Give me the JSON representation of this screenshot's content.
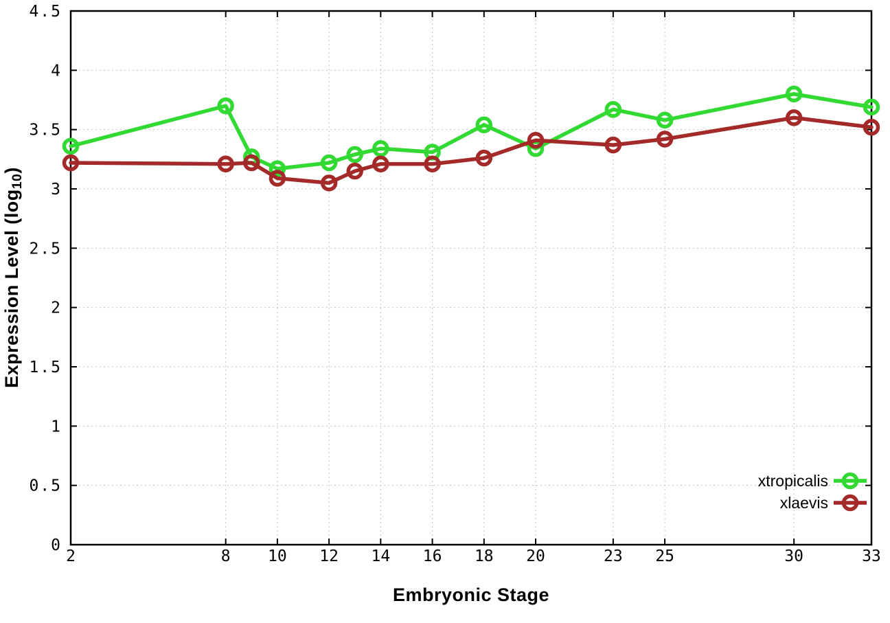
{
  "chart_data": {
    "type": "line",
    "title": "",
    "xlabel": "Embryonic Stage",
    "ylabel": {
      "pre": "Expression Level (log",
      "sub": "10",
      "post": ")"
    },
    "xlim": [
      2,
      33
    ],
    "ylim": [
      0,
      4.5
    ],
    "grid": true,
    "legend_position": "bottom-right",
    "x_tick_labels": [
      "2",
      "8",
      "10",
      "12",
      "14",
      "16",
      "18",
      "20",
      "23",
      "25",
      "30",
      "33"
    ],
    "x_ticks": [
      2,
      8,
      10,
      12,
      14,
      16,
      18,
      20,
      23,
      25,
      30,
      33
    ],
    "y_tick_labels": [
      "0",
      "0.5",
      "1",
      "1.5",
      "2",
      "2.5",
      "3",
      "3.5",
      "4",
      "4.5"
    ],
    "y_ticks": [
      0,
      0.5,
      1,
      1.5,
      2,
      2.5,
      3,
      3.5,
      4,
      4.5
    ],
    "x": [
      2,
      8,
      9,
      10,
      12,
      13,
      14,
      16,
      18,
      20,
      23,
      25,
      30,
      33
    ],
    "series": [
      {
        "name": "xtropicalis",
        "color": "#32d932",
        "values": [
          3.36,
          3.7,
          3.27,
          3.17,
          3.22,
          3.29,
          3.34,
          3.31,
          3.54,
          3.34,
          3.67,
          3.58,
          3.8,
          3.69
        ]
      },
      {
        "name": "xlaevis",
        "color": "#a42a2a",
        "values": [
          3.22,
          3.21,
          3.22,
          3.09,
          3.05,
          3.15,
          3.21,
          3.21,
          3.26,
          3.41,
          3.37,
          3.42,
          3.6,
          3.52
        ]
      }
    ],
    "colors": {
      "grid": "#c0c0c0",
      "border": "#000000",
      "background": "#ffffff"
    }
  }
}
